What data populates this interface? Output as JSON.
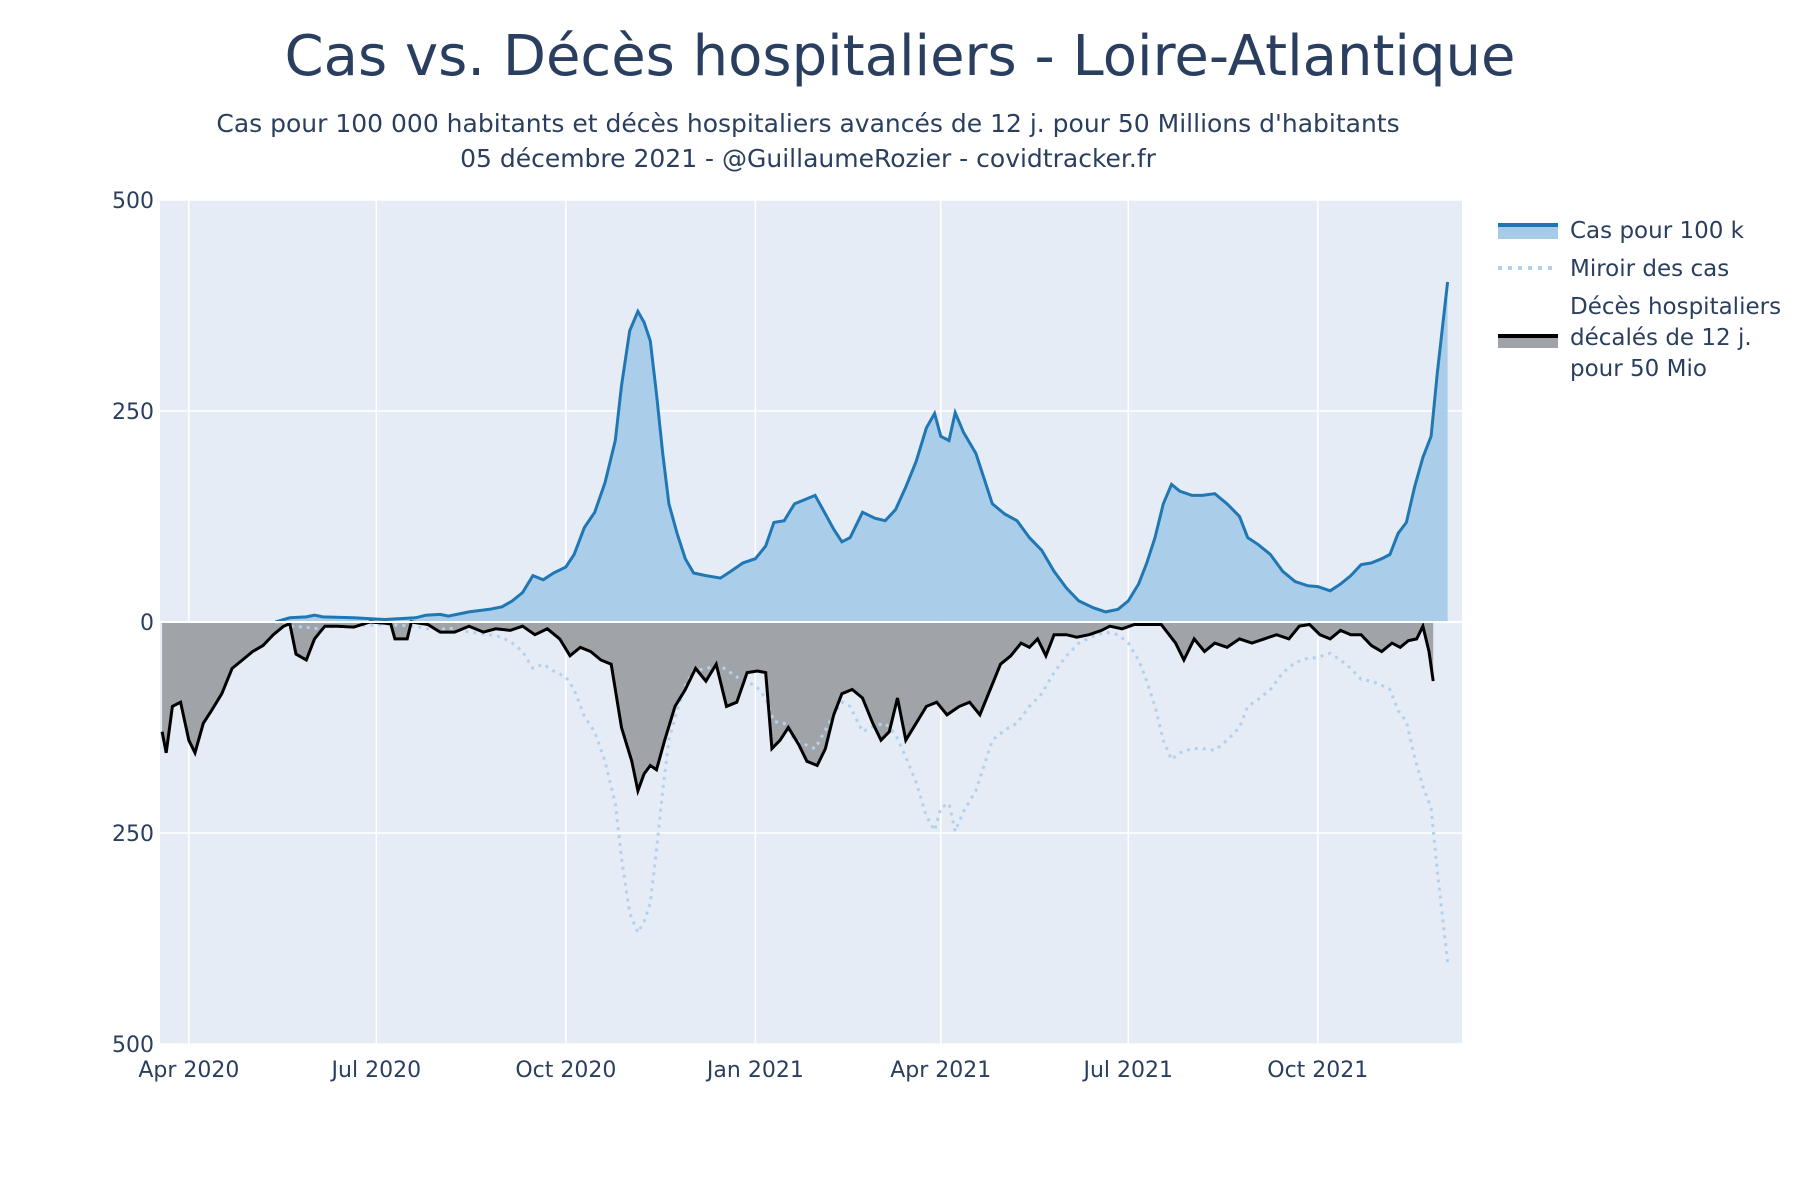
{
  "chart_data": {
    "type": "area",
    "title": "Cas vs. Décès hospitaliers - Loire-Atlantique",
    "subtitle_lines": [
      "Cas pour 100 000 habitants et décès hospitaliers avancés de 12 j. pour 50 Millions d'habitants",
      "05 décembre 2021 - @GuillaumeRozier - covidtracker.fr"
    ],
    "xlabel": "",
    "ylabel": "",
    "x_range": [
      "2020-03-18",
      "2021-12-10"
    ],
    "y_range": [
      -500,
      500
    ],
    "y_ticks": [
      {
        "value": 500,
        "label": "500"
      },
      {
        "value": 250,
        "label": "250"
      },
      {
        "value": 0,
        "label": "0"
      },
      {
        "value": -250,
        "label": "250"
      },
      {
        "value": -500,
        "label": "500"
      }
    ],
    "x_ticks": [
      {
        "date": "2020-04-01",
        "label": "Apr 2020"
      },
      {
        "date": "2020-07-01",
        "label": "Jul 2020"
      },
      {
        "date": "2020-10-01",
        "label": "Oct 2020"
      },
      {
        "date": "2021-01-01",
        "label": "Jan 2021"
      },
      {
        "date": "2021-04-01",
        "label": "Apr 2021"
      },
      {
        "date": "2021-07-01",
        "label": "Jul 2021"
      },
      {
        "date": "2021-10-01",
        "label": "Oct 2021"
      }
    ],
    "grid": true,
    "legend_position": "right",
    "colors": {
      "plot_bg": "#e5ecf6",
      "grid": "#ffffff",
      "cases_line": "#1f77b4",
      "cases_fill": "#a6cbe8",
      "mirror_line": "#b3d1ec",
      "deaths_line": "#000000",
      "deaths_fill": "#a0a3a8"
    },
    "series": [
      {
        "name": "Cas pour 100 k",
        "style": "line+fill",
        "points": [
          [
            "2020-05-13",
            0
          ],
          [
            "2020-05-20",
            5
          ],
          [
            "2020-05-28",
            6
          ],
          [
            "2020-06-01",
            8
          ],
          [
            "2020-06-05",
            6
          ],
          [
            "2020-06-20",
            5
          ],
          [
            "2020-07-05",
            3
          ],
          [
            "2020-07-20",
            5
          ],
          [
            "2020-07-25",
            8
          ],
          [
            "2020-08-01",
            9
          ],
          [
            "2020-08-05",
            7
          ],
          [
            "2020-08-15",
            12
          ],
          [
            "2020-08-25",
            15
          ],
          [
            "2020-08-31",
            18
          ],
          [
            "2020-09-05",
            25
          ],
          [
            "2020-09-10",
            35
          ],
          [
            "2020-09-15",
            55
          ],
          [
            "2020-09-20",
            50
          ],
          [
            "2020-09-25",
            58
          ],
          [
            "2020-10-01",
            65
          ],
          [
            "2020-10-05",
            80
          ],
          [
            "2020-10-10",
            112
          ],
          [
            "2020-10-15",
            130
          ],
          [
            "2020-10-20",
            165
          ],
          [
            "2020-10-25",
            215
          ],
          [
            "2020-10-28",
            280
          ],
          [
            "2020-11-01",
            345
          ],
          [
            "2020-11-05",
            368
          ],
          [
            "2020-11-08",
            355
          ],
          [
            "2020-11-11",
            333
          ],
          [
            "2020-11-14",
            270
          ],
          [
            "2020-11-17",
            200
          ],
          [
            "2020-11-20",
            140
          ],
          [
            "2020-11-24",
            105
          ],
          [
            "2020-11-28",
            75
          ],
          [
            "2020-12-02",
            58
          ],
          [
            "2020-12-08",
            55
          ],
          [
            "2020-12-15",
            52
          ],
          [
            "2020-12-20",
            60
          ],
          [
            "2020-12-26",
            70
          ],
          [
            "2021-01-01",
            75
          ],
          [
            "2021-01-06",
            90
          ],
          [
            "2021-01-10",
            118
          ],
          [
            "2021-01-15",
            120
          ],
          [
            "2021-01-20",
            140
          ],
          [
            "2021-01-25",
            145
          ],
          [
            "2021-01-30",
            150
          ],
          [
            "2021-02-04",
            128
          ],
          [
            "2021-02-08",
            110
          ],
          [
            "2021-02-12",
            95
          ],
          [
            "2021-02-16",
            100
          ],
          [
            "2021-02-22",
            130
          ],
          [
            "2021-02-28",
            123
          ],
          [
            "2021-03-05",
            120
          ],
          [
            "2021-03-10",
            133
          ],
          [
            "2021-03-15",
            160
          ],
          [
            "2021-03-20",
            190
          ],
          [
            "2021-03-25",
            230
          ],
          [
            "2021-03-29",
            247
          ],
          [
            "2021-04-01",
            220
          ],
          [
            "2021-04-05",
            215
          ],
          [
            "2021-04-08",
            248
          ],
          [
            "2021-04-12",
            225
          ],
          [
            "2021-04-18",
            200
          ],
          [
            "2021-04-22",
            170
          ],
          [
            "2021-04-26",
            140
          ],
          [
            "2021-05-02",
            128
          ],
          [
            "2021-05-08",
            120
          ],
          [
            "2021-05-14",
            100
          ],
          [
            "2021-05-20",
            85
          ],
          [
            "2021-05-26",
            60
          ],
          [
            "2021-06-01",
            40
          ],
          [
            "2021-06-07",
            25
          ],
          [
            "2021-06-14",
            17
          ],
          [
            "2021-06-20",
            12
          ],
          [
            "2021-06-26",
            15
          ],
          [
            "2021-07-01",
            25
          ],
          [
            "2021-07-06",
            45
          ],
          [
            "2021-07-10",
            70
          ],
          [
            "2021-07-14",
            100
          ],
          [
            "2021-07-18",
            140
          ],
          [
            "2021-07-22",
            163
          ],
          [
            "2021-07-26",
            155
          ],
          [
            "2021-08-01",
            150
          ],
          [
            "2021-08-06",
            150
          ],
          [
            "2021-08-12",
            152
          ],
          [
            "2021-08-18",
            140
          ],
          [
            "2021-08-24",
            125
          ],
          [
            "2021-08-28",
            100
          ],
          [
            "2021-09-02",
            92
          ],
          [
            "2021-09-08",
            80
          ],
          [
            "2021-09-14",
            60
          ],
          [
            "2021-09-20",
            48
          ],
          [
            "2021-09-26",
            43
          ],
          [
            "2021-10-01",
            42
          ],
          [
            "2021-10-07",
            37
          ],
          [
            "2021-10-12",
            45
          ],
          [
            "2021-10-17",
            55
          ],
          [
            "2021-10-22",
            68
          ],
          [
            "2021-10-27",
            70
          ],
          [
            "2021-11-01",
            75
          ],
          [
            "2021-11-05",
            80
          ],
          [
            "2021-11-09",
            105
          ],
          [
            "2021-11-13",
            118
          ],
          [
            "2021-11-17",
            160
          ],
          [
            "2021-11-21",
            195
          ],
          [
            "2021-11-25",
            220
          ],
          [
            "2021-11-28",
            295
          ],
          [
            "2021-12-01",
            360
          ],
          [
            "2021-12-03",
            403
          ]
        ]
      },
      {
        "name": "Miroir des cas",
        "style": "dotted",
        "mirror_of": "Cas pour 100 k"
      },
      {
        "name": "Décès hospitaliers décalés de 12 j. pour 50 Mio",
        "style": "line+fill",
        "points": [
          [
            "2020-03-19",
            -130
          ],
          [
            "2020-03-21",
            -155
          ],
          [
            "2020-03-24",
            -100
          ],
          [
            "2020-03-28",
            -95
          ],
          [
            "2020-04-01",
            -140
          ],
          [
            "2020-04-04",
            -155
          ],
          [
            "2020-04-08",
            -120
          ],
          [
            "2020-04-12",
            -105
          ],
          [
            "2020-04-17",
            -85
          ],
          [
            "2020-04-22",
            -55
          ],
          [
            "2020-04-27",
            -45
          ],
          [
            "2020-05-02",
            -35
          ],
          [
            "2020-05-07",
            -28
          ],
          [
            "2020-05-12",
            -15
          ],
          [
            "2020-05-17",
            -5
          ],
          [
            "2020-05-20",
            -2
          ],
          [
            "2020-05-23",
            -38
          ],
          [
            "2020-05-28",
            -45
          ],
          [
            "2020-06-01",
            -20
          ],
          [
            "2020-06-06",
            -5
          ],
          [
            "2020-06-12",
            -5
          ],
          [
            "2020-06-20",
            -6
          ],
          [
            "2020-06-28",
            0
          ],
          [
            "2020-07-08",
            -2
          ],
          [
            "2020-07-10",
            -20
          ],
          [
            "2020-07-16",
            -20
          ],
          [
            "2020-07-18",
            0
          ],
          [
            "2020-07-26",
            -3
          ],
          [
            "2020-08-01",
            -12
          ],
          [
            "2020-08-08",
            -12
          ],
          [
            "2020-08-15",
            -5
          ],
          [
            "2020-08-22",
            -12
          ],
          [
            "2020-08-28",
            -8
          ],
          [
            "2020-09-04",
            -10
          ],
          [
            "2020-09-10",
            -5
          ],
          [
            "2020-09-16",
            -15
          ],
          [
            "2020-09-22",
            -8
          ],
          [
            "2020-09-28",
            -20
          ],
          [
            "2020-10-03",
            -40
          ],
          [
            "2020-10-08",
            -30
          ],
          [
            "2020-10-13",
            -35
          ],
          [
            "2020-10-18",
            -45
          ],
          [
            "2020-10-23",
            -50
          ],
          [
            "2020-10-28",
            -125
          ],
          [
            "2020-11-02",
            -165
          ],
          [
            "2020-11-05",
            -200
          ],
          [
            "2020-11-08",
            -180
          ],
          [
            "2020-11-11",
            -170
          ],
          [
            "2020-11-14",
            -175
          ],
          [
            "2020-11-18",
            -140
          ],
          [
            "2020-11-23",
            -100
          ],
          [
            "2020-11-28",
            -80
          ],
          [
            "2020-12-03",
            -55
          ],
          [
            "2020-12-08",
            -70
          ],
          [
            "2020-12-13",
            -50
          ],
          [
            "2020-12-18",
            -100
          ],
          [
            "2020-12-23",
            -95
          ],
          [
            "2020-12-28",
            -60
          ],
          [
            "2021-01-02",
            -58
          ],
          [
            "2021-01-06",
            -60
          ],
          [
            "2021-01-09",
            -150
          ],
          [
            "2021-01-13",
            -140
          ],
          [
            "2021-01-17",
            -125
          ],
          [
            "2021-01-22",
            -145
          ],
          [
            "2021-01-26",
            -165
          ],
          [
            "2021-01-31",
            -170
          ],
          [
            "2021-02-04",
            -150
          ],
          [
            "2021-02-08",
            -110
          ],
          [
            "2021-02-12",
            -85
          ],
          [
            "2021-02-17",
            -80
          ],
          [
            "2021-02-22",
            -90
          ],
          [
            "2021-02-27",
            -120
          ],
          [
            "2021-03-03",
            -140
          ],
          [
            "2021-03-07",
            -130
          ],
          [
            "2021-03-11",
            -90
          ],
          [
            "2021-03-15",
            -140
          ],
          [
            "2021-03-20",
            -120
          ],
          [
            "2021-03-25",
            -100
          ],
          [
            "2021-03-30",
            -95
          ],
          [
            "2021-04-04",
            -110
          ],
          [
            "2021-04-10",
            -100
          ],
          [
            "2021-04-15",
            -95
          ],
          [
            "2021-04-20",
            -110
          ],
          [
            "2021-04-25",
            -80
          ],
          [
            "2021-04-30",
            -50
          ],
          [
            "2021-05-05",
            -40
          ],
          [
            "2021-05-10",
            -25
          ],
          [
            "2021-05-14",
            -30
          ],
          [
            "2021-05-18",
            -20
          ],
          [
            "2021-05-22",
            -40
          ],
          [
            "2021-05-26",
            -15
          ],
          [
            "2021-06-01",
            -15
          ],
          [
            "2021-06-06",
            -18
          ],
          [
            "2021-06-12",
            -15
          ],
          [
            "2021-06-18",
            -10
          ],
          [
            "2021-06-22",
            -5
          ],
          [
            "2021-06-28",
            -8
          ],
          [
            "2021-07-04",
            -3
          ],
          [
            "2021-07-10",
            -3
          ],
          [
            "2021-07-17",
            -3
          ],
          [
            "2021-07-24",
            -25
          ],
          [
            "2021-07-28",
            -45
          ],
          [
            "2021-08-02",
            -20
          ],
          [
            "2021-08-07",
            -35
          ],
          [
            "2021-08-12",
            -25
          ],
          [
            "2021-08-18",
            -30
          ],
          [
            "2021-08-24",
            -20
          ],
          [
            "2021-08-30",
            -25
          ],
          [
            "2021-09-05",
            -20
          ],
          [
            "2021-09-11",
            -15
          ],
          [
            "2021-09-17",
            -20
          ],
          [
            "2021-09-22",
            -5
          ],
          [
            "2021-09-27",
            -3
          ],
          [
            "2021-10-02",
            -15
          ],
          [
            "2021-10-07",
            -20
          ],
          [
            "2021-10-12",
            -10
          ],
          [
            "2021-10-17",
            -15
          ],
          [
            "2021-10-22",
            -15
          ],
          [
            "2021-10-27",
            -28
          ],
          [
            "2021-11-01",
            -35
          ],
          [
            "2021-11-06",
            -25
          ],
          [
            "2021-11-10",
            -30
          ],
          [
            "2021-11-14",
            -22
          ],
          [
            "2021-11-18",
            -20
          ],
          [
            "2021-11-21",
            -5
          ],
          [
            "2021-11-24",
            -35
          ],
          [
            "2021-11-26",
            -70
          ]
        ]
      }
    ]
  }
}
